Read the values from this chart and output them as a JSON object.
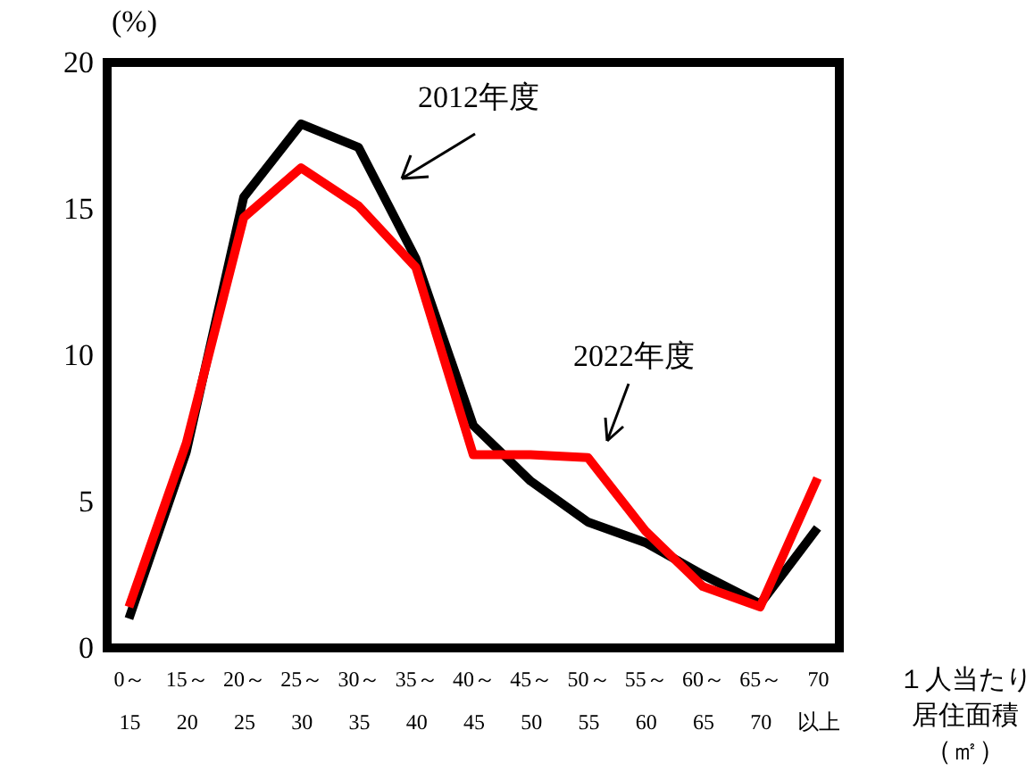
{
  "chart_data": {
    "type": "line",
    "categories": [
      "0～\n15",
      "15～\n20",
      "20～\n25",
      "25～\n30",
      "30～\n35",
      "35～\n40",
      "40～\n45",
      "45～\n50",
      "50～\n55",
      "55～\n60",
      "60～\n65",
      "65～\n70",
      "70\n以上"
    ],
    "series": [
      {
        "name": "2012年度",
        "color": "#000000",
        "values": [
          1.0,
          6.7,
          15.4,
          17.9,
          17.1,
          13.3,
          7.6,
          5.7,
          4.3,
          3.6,
          2.5,
          1.5,
          4.1
        ]
      },
      {
        "name": "2022年度",
        "color": "#ff0000",
        "values": [
          1.4,
          7.0,
          14.7,
          16.4,
          15.1,
          13.0,
          6.6,
          6.6,
          6.5,
          4.0,
          2.1,
          1.4,
          5.8
        ]
      }
    ],
    "xlabel": "１人当たり居住面積（㎡）",
    "ylabel": "(%)",
    "ylim": [
      0,
      20
    ],
    "yticks": [
      0,
      5,
      10,
      15,
      20
    ],
    "grid": false,
    "legend": false,
    "marker": "none",
    "line_style": "solid"
  }
}
